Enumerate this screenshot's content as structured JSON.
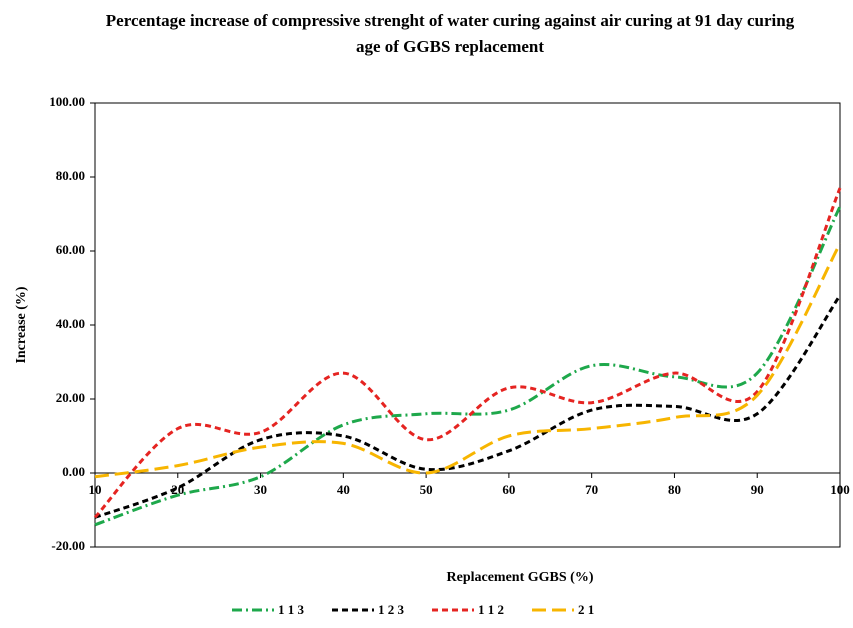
{
  "chart_data": {
    "type": "line",
    "title": "Percentage increase of compressive strenght of water curing against air curing at 91 day curing age of GGBS replacement",
    "x_label": "Replacement GGBS (%)",
    "y_label": "Increase (%)",
    "x": [
      10,
      20,
      30,
      40,
      50,
      60,
      70,
      80,
      90,
      100
    ],
    "series": [
      {
        "name": "1 1 3",
        "color": "#1ea84b",
        "dash": "10 4 2 4",
        "values": [
          -14,
          -6,
          -1,
          13,
          16,
          17,
          29,
          26,
          27,
          72
        ]
      },
      {
        "name": "1 2 3",
        "color": "#000000",
        "dash": "6 4",
        "values": [
          -12,
          -4,
          9,
          10,
          1,
          6,
          17,
          18,
          16,
          48
        ]
      },
      {
        "name": "1 1 2",
        "color": "#e52421",
        "dash": "6 4",
        "values": [
          -12,
          12,
          11,
          27,
          9,
          23,
          19,
          27,
          22,
          77
        ]
      },
      {
        "name": "2 1",
        "color": "#f7b500",
        "dash": "14 6",
        "values": [
          -1,
          2,
          7,
          8,
          0,
          10,
          12,
          15,
          21,
          62
        ]
      }
    ],
    "xlim": [
      10,
      100
    ],
    "xticks": [
      10,
      20,
      30,
      40,
      50,
      60,
      70,
      80,
      90,
      100
    ],
    "ylim": [
      -20,
      100
    ],
    "yticks": [
      {
        "value": -20,
        "label": "-20.00"
      },
      {
        "value": 0,
        "label": "0.00"
      },
      {
        "value": 20,
        "label": "20.00"
      },
      {
        "value": 40,
        "label": "40.00"
      },
      {
        "value": 60,
        "label": "60.00"
      },
      {
        "value": 80,
        "label": "80.00"
      },
      {
        "value": 100,
        "label": "100.00"
      }
    ],
    "legend": "bottom"
  }
}
